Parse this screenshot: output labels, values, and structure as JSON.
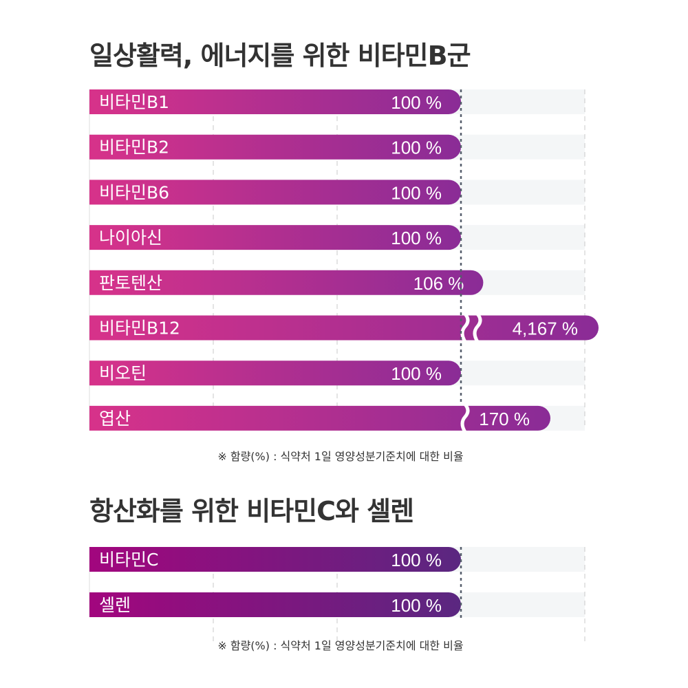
{
  "sections": [
    {
      "title": "일상활력, 에너지를 위한 비타민B군",
      "footnote": "※ 함량(%) : 식약처 1일 영양성분기준치에 대한 비율"
    },
    {
      "title": "항산화를 위한 비타민C와 셀렌",
      "footnote": "※ 함량(%) : 식약처 1일 영양성분기준치에 대한 비율"
    }
  ],
  "chart_data": [
    {
      "type": "bar",
      "orientation": "horizontal",
      "title": "일상활력, 에너지를 위한 비타민B군",
      "categories": [
        "비타민B1",
        "비타민B2",
        "비타민B6",
        "나이아신",
        "판토텐산",
        "비타민B12",
        "비오틴",
        "엽산"
      ],
      "values": [
        100,
        100,
        100,
        100,
        106,
        4167,
        100,
        170
      ],
      "value_labels": [
        "100 %",
        "100 %",
        "100 %",
        "100 %",
        "106 %",
        "4,167 %",
        "100 %",
        "170 %"
      ],
      "axis_break": [
        false,
        false,
        false,
        false,
        false,
        true,
        false,
        true
      ],
      "reference_line": 100,
      "grid": true,
      "colors": {
        "start": "#d7328a",
        "end": "#8a2c96",
        "stripe": "#f4f6f7",
        "grid": "#c8c8c8",
        "reference": "#555d6b"
      }
    },
    {
      "type": "bar",
      "orientation": "horizontal",
      "title": "항산화를 위한 비타민C와 셀렌",
      "categories": [
        "비타민C",
        "셀렌"
      ],
      "values": [
        100,
        100
      ],
      "value_labels": [
        "100 %",
        "100 %"
      ],
      "axis_break": [
        false,
        false
      ],
      "reference_line": 100,
      "grid": true,
      "colors": {
        "start": "#a2067e",
        "end": "#5a2780",
        "stripe": "#f4f6f7",
        "grid": "#c8c8c8",
        "reference": "#555d6b"
      }
    }
  ]
}
